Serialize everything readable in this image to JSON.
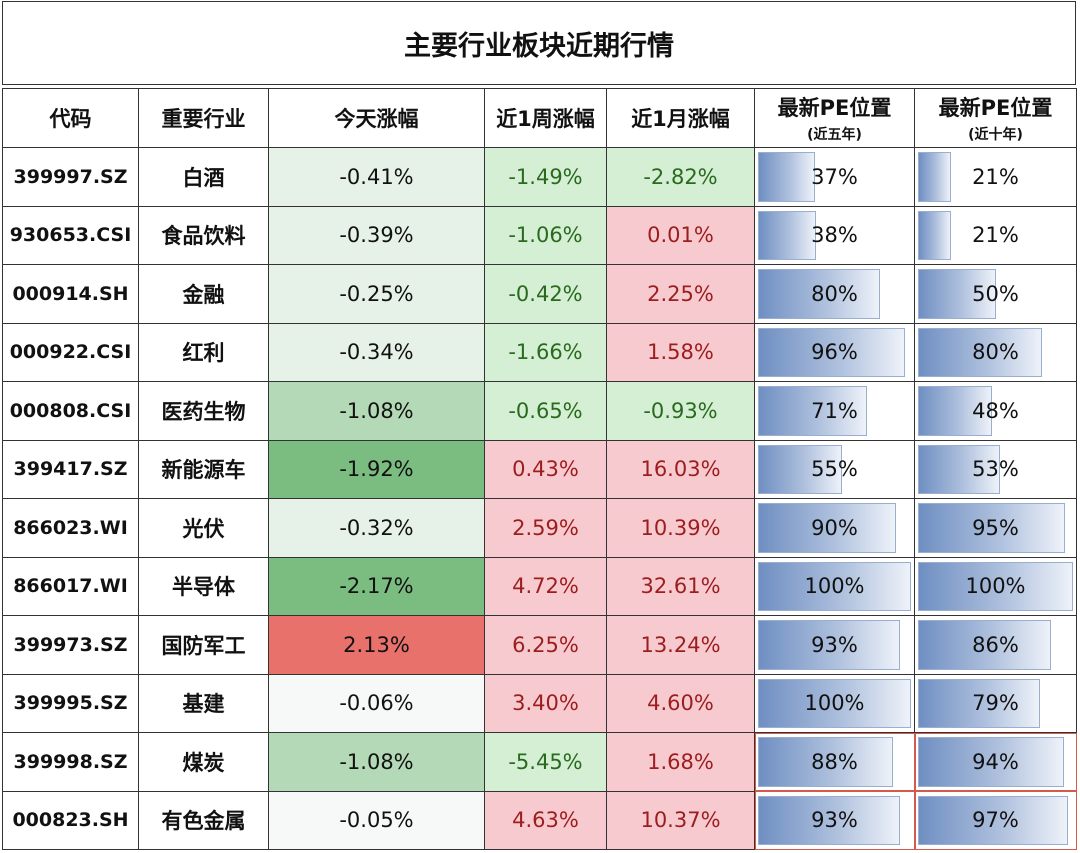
{
  "title": "主要行业板块近期行情",
  "headers": {
    "code": "代码",
    "industry": "重要行业",
    "today": "今天涨幅",
    "week": "近1周涨幅",
    "month": "近1月涨幅",
    "pe5_main": "最新PE位置",
    "pe5_sub": "(近五年)",
    "pe10_main": "最新PE位置",
    "pe10_sub": "(近十年)"
  },
  "colors": {
    "green_light": "#e6f2e8",
    "green_mid": "#b4d9b7",
    "green_dark": "#7bbd80",
    "red_today": "#e8716c",
    "pale": "#f6f9f7",
    "week_month_green": "#d4efd3",
    "week_month_red": "#f7cad0"
  },
  "rows": [
    {
      "code": "399997.SZ",
      "industry": "白酒",
      "today": "-0.41%",
      "today_pct": -0.41,
      "week": "-1.49%",
      "week_pct": -1.49,
      "month": "-2.82%",
      "month_pct": -2.82,
      "pe5": "37%",
      "pe5_pct": 37,
      "pe10": "21%",
      "pe10_pct": 21
    },
    {
      "code": "930653.CSI",
      "industry": "食品饮料",
      "today": "-0.39%",
      "today_pct": -0.39,
      "week": "-1.06%",
      "week_pct": -1.06,
      "month": "0.01%",
      "month_pct": 0.01,
      "pe5": "38%",
      "pe5_pct": 38,
      "pe10": "21%",
      "pe10_pct": 21
    },
    {
      "code": "000914.SH",
      "industry": "金融",
      "today": "-0.25%",
      "today_pct": -0.25,
      "week": "-0.42%",
      "week_pct": -0.42,
      "month": "2.25%",
      "month_pct": 2.25,
      "pe5": "80%",
      "pe5_pct": 80,
      "pe10": "50%",
      "pe10_pct": 50
    },
    {
      "code": "000922.CSI",
      "industry": "红利",
      "today": "-0.34%",
      "today_pct": -0.34,
      "week": "-1.66%",
      "week_pct": -1.66,
      "month": "1.58%",
      "month_pct": 1.58,
      "pe5": "96%",
      "pe5_pct": 96,
      "pe10": "80%",
      "pe10_pct": 80
    },
    {
      "code": "000808.CSI",
      "industry": "医药生物",
      "today": "-1.08%",
      "today_pct": -1.08,
      "week": "-0.65%",
      "week_pct": -0.65,
      "month": "-0.93%",
      "month_pct": -0.93,
      "pe5": "71%",
      "pe5_pct": 71,
      "pe10": "48%",
      "pe10_pct": 48
    },
    {
      "code": "399417.SZ",
      "industry": "新能源车",
      "today": "-1.92%",
      "today_pct": -1.92,
      "week": "0.43%",
      "week_pct": 0.43,
      "month": "16.03%",
      "month_pct": 16.03,
      "pe5": "55%",
      "pe5_pct": 55,
      "pe10": "53%",
      "pe10_pct": 53
    },
    {
      "code": "866023.WI",
      "industry": "光伏",
      "today": "-0.32%",
      "today_pct": -0.32,
      "week": "2.59%",
      "week_pct": 2.59,
      "month": "10.39%",
      "month_pct": 10.39,
      "pe5": "90%",
      "pe5_pct": 90,
      "pe10": "95%",
      "pe10_pct": 95
    },
    {
      "code": "866017.WI",
      "industry": "半导体",
      "today": "-2.17%",
      "today_pct": -2.17,
      "week": "4.72%",
      "week_pct": 4.72,
      "month": "32.61%",
      "month_pct": 32.61,
      "pe5": "100%",
      "pe5_pct": 100,
      "pe10": "100%",
      "pe10_pct": 100
    },
    {
      "code": "399973.SZ",
      "industry": "国防军工",
      "today": "2.13%",
      "today_pct": 2.13,
      "week": "6.25%",
      "week_pct": 6.25,
      "month": "13.24%",
      "month_pct": 13.24,
      "pe5": "93%",
      "pe5_pct": 93,
      "pe10": "86%",
      "pe10_pct": 86
    },
    {
      "code": "399995.SZ",
      "industry": "基建",
      "today": "-0.06%",
      "today_pct": -0.06,
      "week": "3.40%",
      "week_pct": 3.4,
      "month": "4.60%",
      "month_pct": 4.6,
      "pe5": "100%",
      "pe5_pct": 100,
      "pe10": "79%",
      "pe10_pct": 79
    },
    {
      "code": "399998.SZ",
      "industry": "煤炭",
      "today": "-1.08%",
      "today_pct": -1.08,
      "week": "-5.45%",
      "week_pct": -5.45,
      "month": "1.68%",
      "month_pct": 1.68,
      "pe5": "88%",
      "pe5_pct": 88,
      "pe10": "94%",
      "pe10_pct": 94
    },
    {
      "code": "000823.SH",
      "industry": "有色金属",
      "today": "-0.05%",
      "today_pct": -0.05,
      "week": "4.63%",
      "week_pct": 4.63,
      "month": "10.37%",
      "month_pct": 10.37,
      "pe5": "93%",
      "pe5_pct": 93,
      "pe10": "97%",
      "pe10_pct": 97
    }
  ]
}
